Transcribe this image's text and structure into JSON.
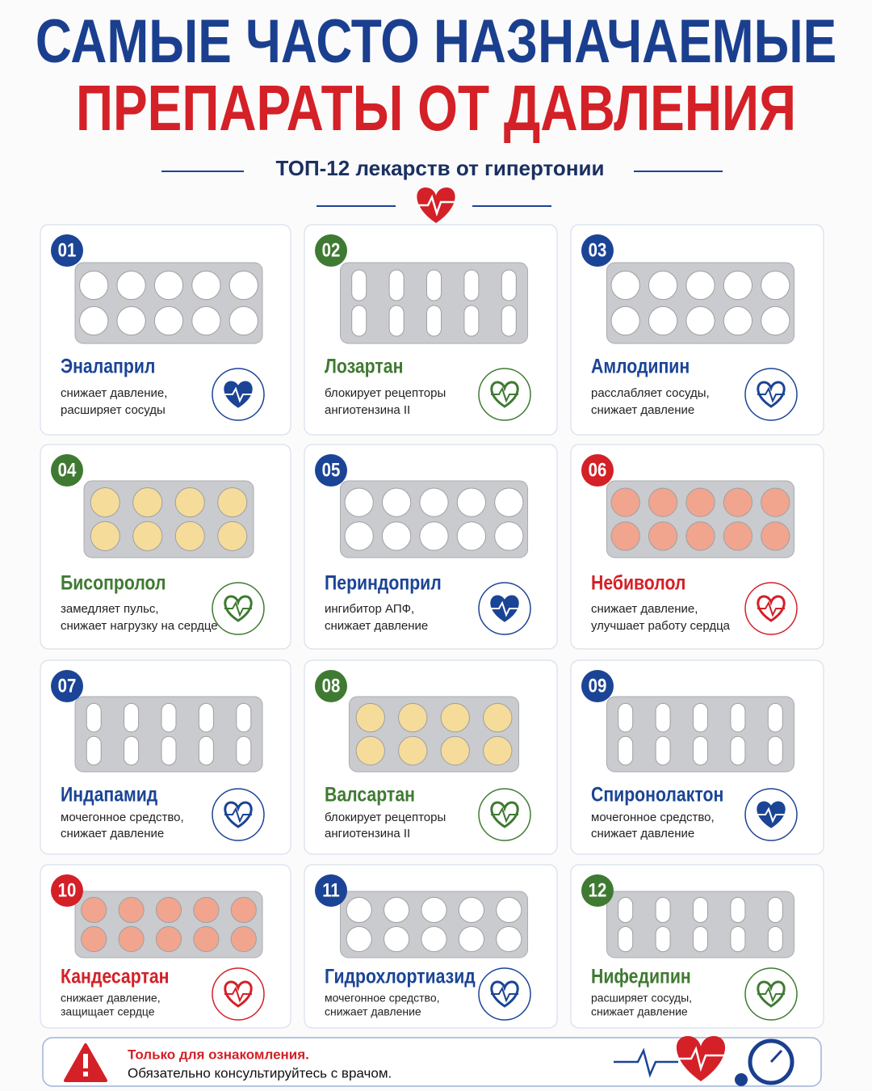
{
  "header": {
    "title_line1": "САМЫЕ ЧАСТО НАЗНАЧАЕМЫЕ",
    "title_line2": "ПРЕПАРАТЫ ОТ ДАВЛЕНИЯ",
    "subtitle": "ТОП-12 лекарств от гипертонии"
  },
  "cards": [
    {
      "number": "01",
      "name": "Эналаприл",
      "description": [
        "снижает давление,",
        "расширяет сосуды"
      ],
      "color": "#1b4496"
    },
    {
      "number": "02",
      "name": "Лозартан",
      "description": [
        "блокирует рецепторы",
        "ангиотензина II"
      ],
      "color": "#3f7a32"
    },
    {
      "number": "03",
      "name": "Амлодипин",
      "description": [
        "расслабляет сосуды,",
        "снижает давление"
      ],
      "color": "#1b4496"
    },
    {
      "number": "04",
      "name": "Бисопролол",
      "description": [
        "замедляет пульс,",
        "снижает нагрузку на сердце"
      ],
      "color": "#3f7a32"
    },
    {
      "number": "05",
      "name": "Периндоприл",
      "description": [
        "ингибитор АПФ,",
        "снижает давление"
      ],
      "color": "#1b4496"
    },
    {
      "number": "06",
      "name": "Небиволол",
      "description": [
        "снижает давление,",
        "улучшает работу сердца"
      ],
      "color": "#d42027"
    },
    {
      "number": "07",
      "name": "Индапамид",
      "description": [
        "мочегонное средство,",
        "снижает давление"
      ],
      "color": "#1b4496"
    },
    {
      "number": "08",
      "name": "Валсартан",
      "description": [
        "блокирует рецепторы",
        "ангиотензина II"
      ],
      "color": "#3f7a32"
    },
    {
      "number": "09",
      "name": "Спиронолактон",
      "description": [
        "мочегонное средство,",
        "снижает давление"
      ],
      "color": "#1b4496"
    },
    {
      "number": "10",
      "name": "Кандесартан",
      "description": [
        "снижает давление,",
        "защищает сердце"
      ],
      "color": "#d42027"
    },
    {
      "number": "11",
      "name": "Гидрохлортиазид",
      "description": [
        "мочегонное средство,",
        "снижает давление"
      ],
      "color": "#1b4496"
    },
    {
      "number": "12",
      "name": "Нифедипин",
      "description": [
        "расширяет сосуды,",
        "снижает давление"
      ],
      "color": "#3f7a32"
    }
  ],
  "footer": {
    "warning": "Только для ознакомления.",
    "note": "Обязательно консультируйтесь с врачом."
  }
}
